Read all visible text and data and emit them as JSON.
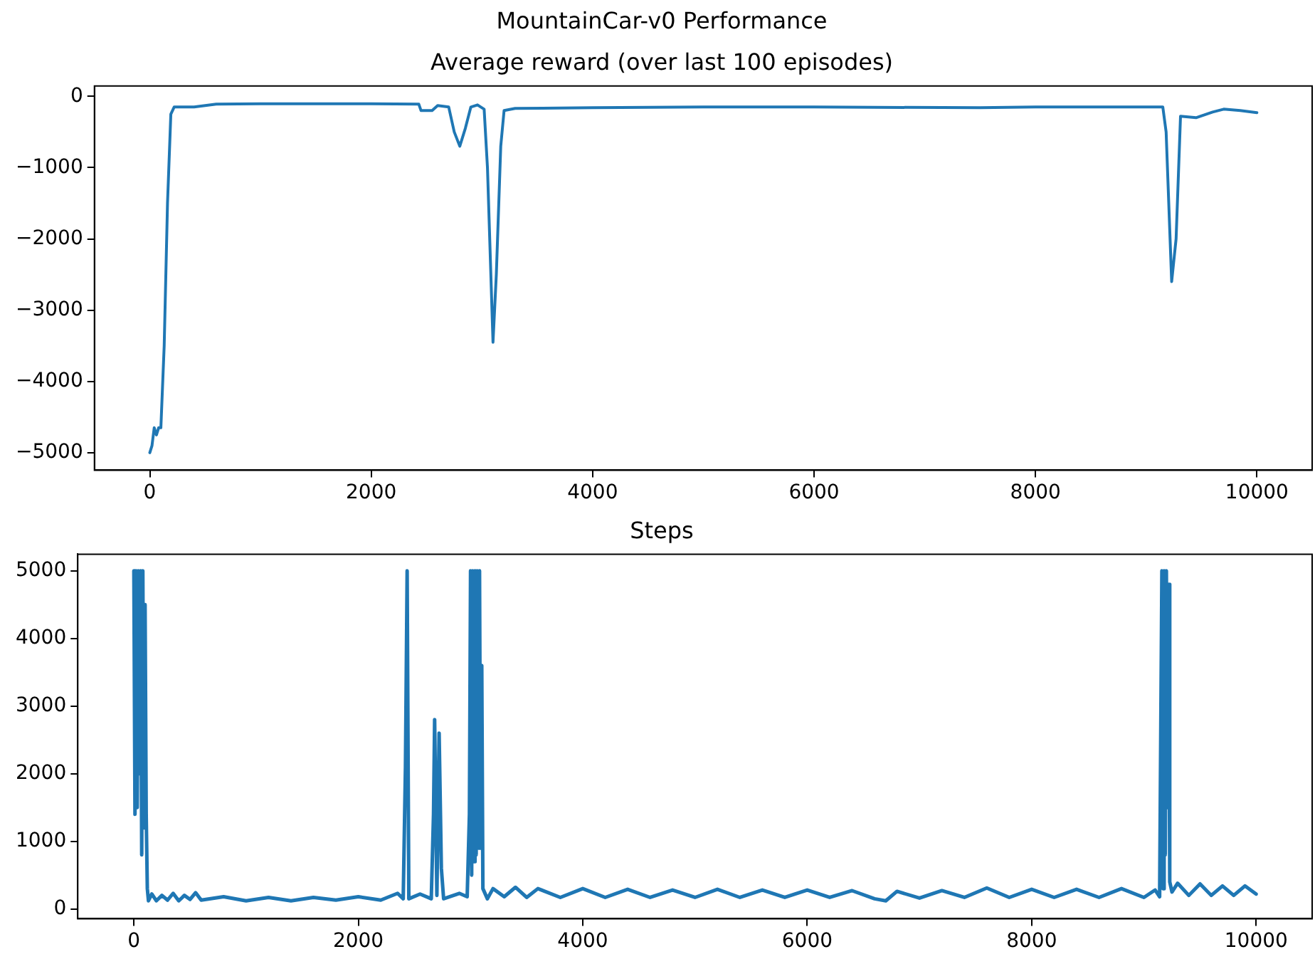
{
  "chart_data": [
    {
      "type": "line",
      "title": "MountainCar-v0 Performance",
      "subtitle": "Average reward (over last 100 episodes)",
      "xlim": [
        -500,
        10499
      ],
      "xticks": [
        0,
        2000,
        4000,
        6000,
        8000,
        10000
      ],
      "ylim": [
        -5245,
        145
      ],
      "yticks": [
        -5000,
        -4000,
        -3000,
        -2000,
        -1000,
        0
      ],
      "grid": false,
      "legend": false,
      "series": [
        {
          "color": "#1f77b4",
          "x": [
            0,
            20,
            40,
            60,
            80,
            100,
            130,
            160,
            190,
            220,
            400,
            600,
            1000,
            2000,
            2430,
            2450,
            2550,
            2600,
            2700,
            2750,
            2800,
            2850,
            2900,
            2960,
            3020,
            3050,
            3100,
            3130,
            3170,
            3200,
            3300,
            4000,
            5000,
            6000,
            7500,
            8000,
            9150,
            9180,
            9230,
            9270,
            9310,
            9450,
            9600,
            9700,
            9850,
            10000
          ],
          "values": [
            -5000,
            -4900,
            -4650,
            -4750,
            -4650,
            -4650,
            -3500,
            -1500,
            -250,
            -150,
            -150,
            -110,
            -105,
            -105,
            -110,
            -200,
            -200,
            -130,
            -150,
            -500,
            -700,
            -450,
            -150,
            -120,
            -180,
            -1000,
            -3450,
            -2500,
            -700,
            -200,
            -170,
            -160,
            -150,
            -150,
            -160,
            -150,
            -150,
            -500,
            -2600,
            -2000,
            -280,
            -300,
            -220,
            -180,
            -200,
            -230
          ]
        }
      ]
    },
    {
      "type": "line",
      "title": "Steps",
      "xlim": [
        -500,
        10499
      ],
      "xticks": [
        0,
        2000,
        4000,
        6000,
        8000,
        10000
      ],
      "ylim": [
        -145,
        5245
      ],
      "yticks": [
        0,
        1000,
        2000,
        3000,
        4000,
        5000
      ],
      "grid": false,
      "legend": false,
      "series": [
        {
          "color": "#1f77b4",
          "x": [
            0,
            10,
            20,
            30,
            40,
            50,
            60,
            70,
            80,
            90,
            100,
            110,
            120,
            130,
            160,
            200,
            250,
            300,
            350,
            400,
            450,
            500,
            550,
            600,
            800,
            1000,
            1200,
            1400,
            1600,
            1800,
            2000,
            2200,
            2350,
            2400,
            2420,
            2435,
            2450,
            2550,
            2650,
            2670,
            2680,
            2700,
            2720,
            2740,
            2760,
            2900,
            2970,
            2990,
            3000,
            3010,
            3020,
            3030,
            3040,
            3050,
            3060,
            3070,
            3080,
            3090,
            3100,
            3110,
            3150,
            3200,
            3300,
            3400,
            3500,
            3600,
            3800,
            4000,
            4200,
            4400,
            4600,
            4800,
            5000,
            5200,
            5400,
            5600,
            5800,
            6000,
            6200,
            6400,
            6600,
            6700,
            6800,
            7000,
            7200,
            7400,
            7600,
            7800,
            8000,
            8200,
            8400,
            8600,
            8800,
            9000,
            9100,
            9140,
            9160,
            9170,
            9180,
            9190,
            9200,
            9210,
            9220,
            9230,
            9250,
            9300,
            9400,
            9500,
            9600,
            9700,
            9800,
            9900,
            10000
          ],
          "values": [
            5000,
            1400,
            5000,
            1500,
            5000,
            2000,
            5000,
            800,
            5000,
            1200,
            4500,
            1400,
            300,
            120,
            220,
            120,
            200,
            130,
            230,
            120,
            200,
            140,
            240,
            130,
            180,
            120,
            170,
            120,
            170,
            130,
            180,
            130,
            230,
            150,
            2100,
            5000,
            150,
            220,
            150,
            1400,
            2800,
            200,
            2600,
            600,
            150,
            230,
            180,
            1400,
            5000,
            500,
            5000,
            700,
            5000,
            800,
            5000,
            900,
            5000,
            900,
            3600,
            300,
            150,
            300,
            180,
            320,
            170,
            300,
            170,
            300,
            170,
            290,
            170,
            280,
            170,
            290,
            170,
            280,
            170,
            280,
            170,
            270,
            150,
            120,
            260,
            160,
            270,
            170,
            310,
            170,
            290,
            170,
            290,
            170,
            300,
            170,
            280,
            180,
            5000,
            300,
            5000,
            800,
            5000,
            1500,
            4800,
            400,
            250,
            380,
            200,
            370,
            200,
            340,
            200,
            340,
            220
          ]
        }
      ]
    }
  ]
}
